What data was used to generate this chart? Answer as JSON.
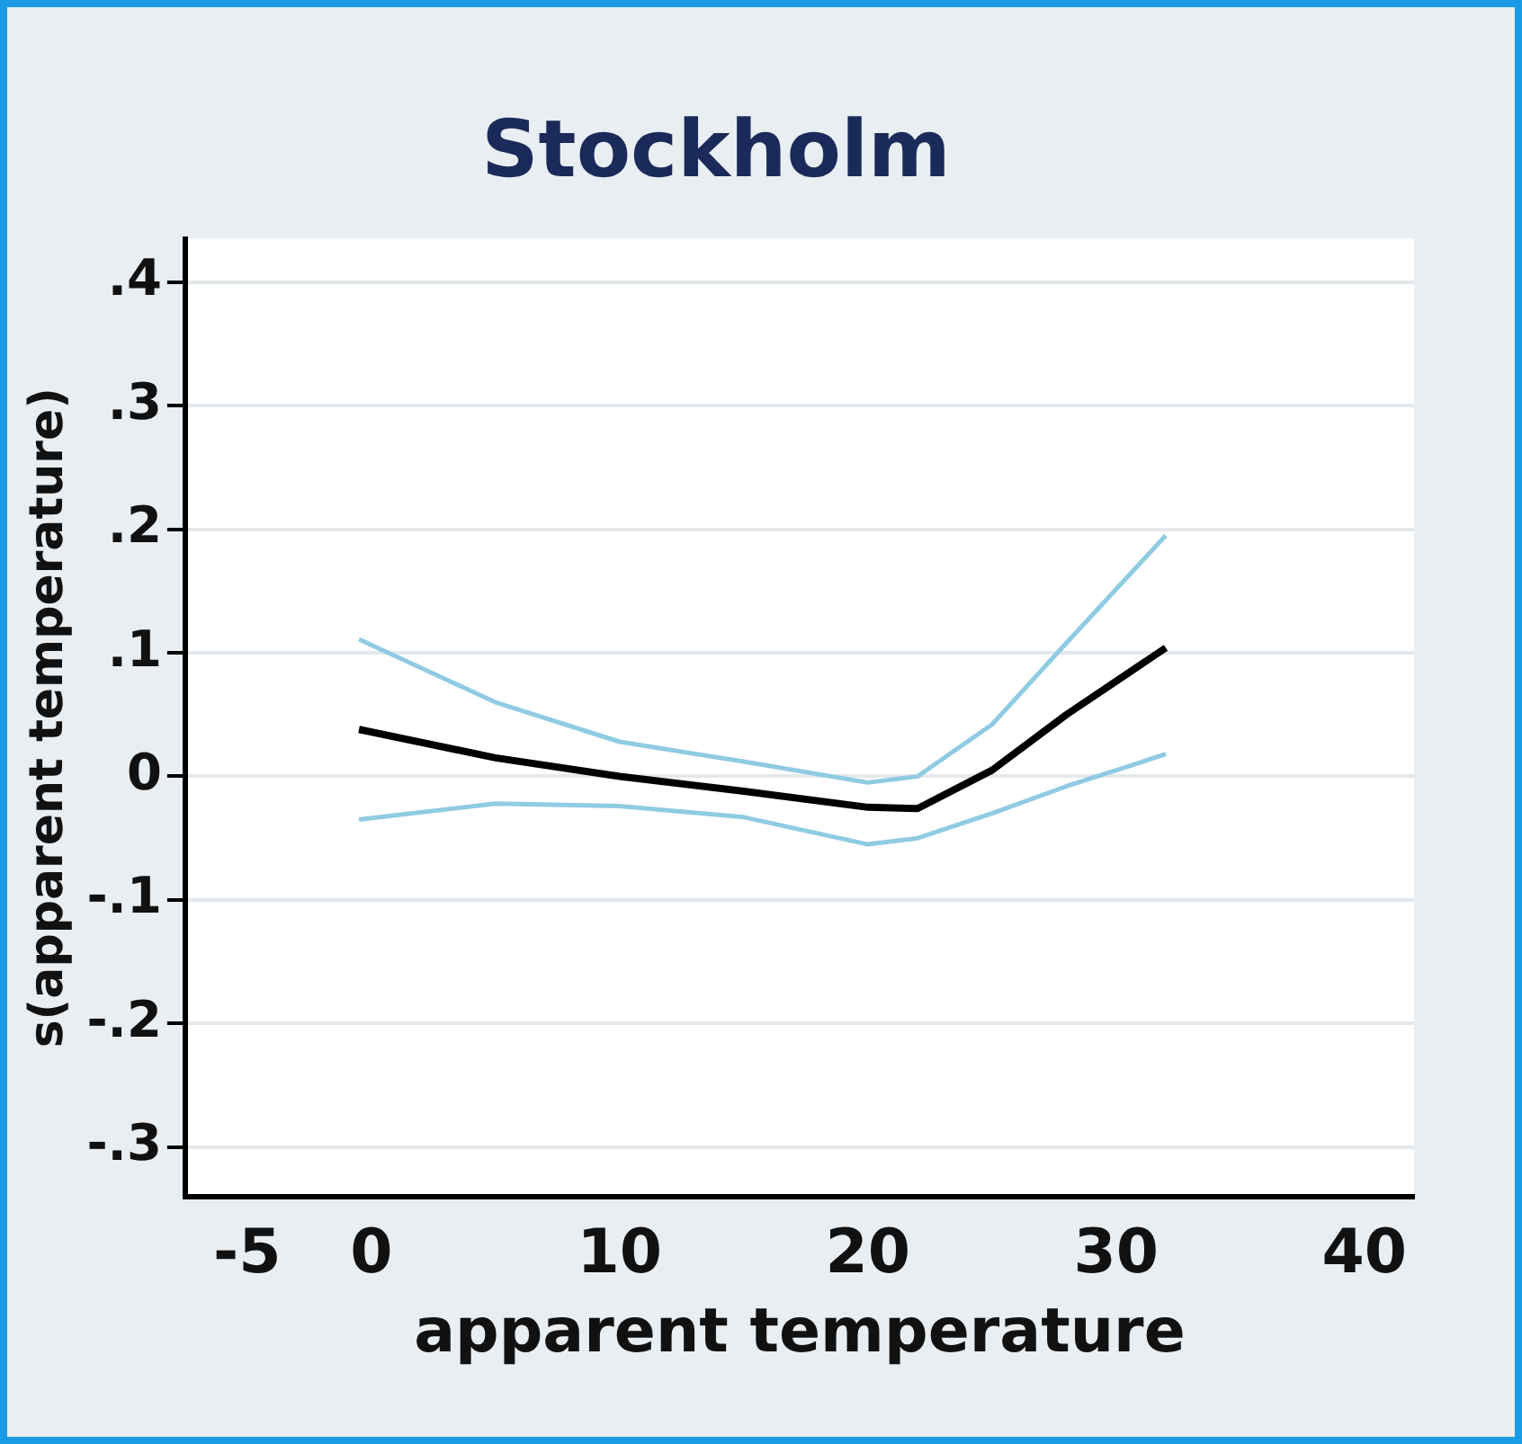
{
  "chart_data": {
    "type": "line",
    "title": "Stockholm",
    "xlabel": "apparent temperature",
    "ylabel": "s(apparent temperature)",
    "x": [
      -0.5,
      5,
      10,
      15,
      20,
      22,
      25,
      28,
      32
    ],
    "series": [
      {
        "color": "#8fcbe3",
        "values": [
          0.111,
          0.06,
          0.028,
          0.012,
          -0.005,
          0.0,
          0.042,
          0.108,
          0.195
        ]
      },
      {
        "color": "#8fcbe3",
        "values": [
          -0.035,
          -0.022,
          -0.024,
          -0.033,
          -0.055,
          -0.05,
          -0.03,
          -0.008,
          0.018
        ]
      },
      {
        "color": "#000000",
        "values": [
          0.038,
          0.015,
          0.0,
          -0.012,
          -0.025,
          -0.026,
          0.005,
          0.05,
          0.104
        ]
      }
    ],
    "xlim": [
      -7.5,
      42
    ],
    "xticks": [
      -5,
      0,
      10,
      20,
      30,
      40
    ],
    "ylim": [
      -0.34,
      0.435
    ],
    "yticks": [
      {
        "value": -0.3,
        "label": "-.3"
      },
      {
        "value": -0.2,
        "label": "-.2"
      },
      {
        "value": -0.1,
        "label": "-.1"
      },
      0,
      {
        "value": 0.1,
        "label": ".1"
      },
      {
        "value": 0.2,
        "label": ".2"
      },
      {
        "value": 0.3,
        "label": ".3"
      },
      {
        "value": 0.4,
        "label": ".4"
      }
    ],
    "grid": "y",
    "legend": false,
    "marker": "none",
    "line_style": "solid"
  }
}
